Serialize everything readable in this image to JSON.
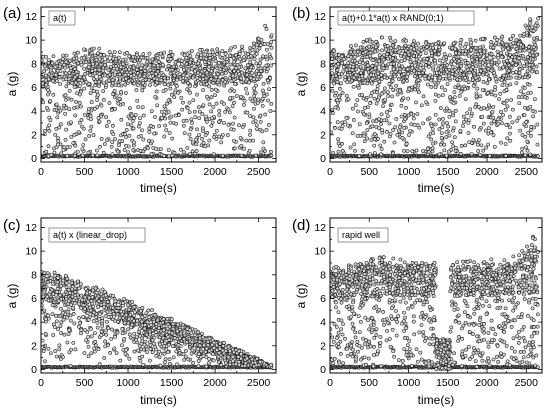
{
  "chart_data": [
    {
      "type": "scatter",
      "panel_label": "(a)",
      "legend": "a(t)",
      "xlabel": "time(s)",
      "ylabel": "a (g)",
      "xlim": [
        0,
        2700
      ],
      "ylim": [
        -0.3,
        12.8
      ],
      "xticks": [
        0,
        500,
        1000,
        1500,
        2000,
        2500
      ],
      "yticks": [
        0,
        2,
        4,
        6,
        8,
        10,
        12
      ],
      "marker": "open-circle",
      "pattern": "envelope",
      "series": [
        {
          "points": [
            [
              0,
              0.2
            ],
            [
              2650,
              0.2
            ]
          ],
          "kind": "baseline"
        },
        {
          "points": [
            [
              0,
              8.6
            ],
            [
              200,
              8.7
            ],
            [
              400,
              9.0
            ],
            [
              600,
              9.6
            ],
            [
              800,
              9.0
            ],
            [
              1200,
              9.0
            ],
            [
              1600,
              9.1
            ],
            [
              2000,
              9.3
            ],
            [
              2400,
              9.6
            ],
            [
              2600,
              11.5
            ]
          ],
          "kind": "upper-envelope"
        },
        {
          "points": [
            [
              0,
              6.0
            ],
            [
              500,
              6.1
            ],
            [
              1000,
              6.2
            ],
            [
              1500,
              6.2
            ],
            [
              2000,
              6.2
            ],
            [
              2500,
              6.4
            ],
            [
              2650,
              6.4
            ]
          ],
          "kind": "dense-band-lower"
        }
      ]
    },
    {
      "type": "scatter",
      "panel_label": "(b)",
      "legend": "a(t)+0.1*a(t) x RAND(0;1)",
      "xlabel": "time(s)",
      "ylabel": "a (g)",
      "xlim": [
        0,
        2700
      ],
      "ylim": [
        -0.3,
        12.8
      ],
      "xticks": [
        0,
        500,
        1000,
        1500,
        2000,
        2500
      ],
      "yticks": [
        0,
        2,
        4,
        6,
        8,
        10,
        12
      ],
      "marker": "open-circle",
      "pattern": "envelope",
      "series": [
        {
          "points": [
            [
              0,
              0.2
            ],
            [
              2650,
              0.2
            ]
          ],
          "kind": "baseline"
        },
        {
          "points": [
            [
              0,
              9.2
            ],
            [
              400,
              9.8
            ],
            [
              600,
              10.4
            ],
            [
              1200,
              9.9
            ],
            [
              1600,
              10.0
            ],
            [
              2000,
              10.2
            ],
            [
              2400,
              10.6
            ],
            [
              2600,
              12.2
            ]
          ],
          "kind": "upper-envelope"
        },
        {
          "points": [
            [
              0,
              6.3
            ],
            [
              500,
              6.4
            ],
            [
              1000,
              6.5
            ],
            [
              1500,
              6.6
            ],
            [
              2000,
              6.6
            ],
            [
              2500,
              6.8
            ],
            [
              2650,
              6.8
            ]
          ],
          "kind": "dense-band-lower"
        }
      ]
    },
    {
      "type": "scatter",
      "panel_label": "(c)",
      "legend": "a(t) x (linear_drop)",
      "xlabel": "time(s)",
      "ylabel": "a (g)",
      "xlim": [
        0,
        2700
      ],
      "ylim": [
        -0.3,
        12.8
      ],
      "xticks": [
        0,
        500,
        1000,
        1500,
        2000,
        2500
      ],
      "yticks": [
        0,
        2,
        4,
        6,
        8,
        10,
        12
      ],
      "marker": "open-circle",
      "pattern": "linear-drop",
      "series": [
        {
          "points": [
            [
              0,
              0.2
            ],
            [
              2650,
              0.2
            ]
          ],
          "kind": "baseline"
        },
        {
          "points": [
            [
              0,
              8.6
            ],
            [
              500,
              7.4
            ],
            [
              1000,
              5.9
            ],
            [
              1500,
              4.3
            ],
            [
              2000,
              2.6
            ],
            [
              2500,
              0.9
            ],
            [
              2650,
              0.2
            ]
          ],
          "kind": "upper-envelope"
        },
        {
          "points": [
            [
              0,
              6.0
            ],
            [
              500,
              5.0
            ],
            [
              1000,
              3.8
            ],
            [
              1500,
              2.6
            ],
            [
              2000,
              1.5
            ],
            [
              2500,
              0.4
            ],
            [
              2650,
              0.2
            ]
          ],
          "kind": "dense-band-lower"
        }
      ]
    },
    {
      "type": "scatter",
      "panel_label": "(d)",
      "legend": "rapid well",
      "xlabel": "time(s)",
      "ylabel": "a (g)",
      "xlim": [
        0,
        2700
      ],
      "ylim": [
        -0.3,
        12.8
      ],
      "xticks": [
        0,
        500,
        1000,
        1500,
        2000,
        2500
      ],
      "yticks": [
        0,
        2,
        4,
        6,
        8,
        10,
        12
      ],
      "marker": "open-circle",
      "pattern": "well",
      "well": {
        "x_range": [
          1350,
          1530
        ],
        "y_max": 2.6
      },
      "series": [
        {
          "points": [
            [
              0,
              0.2
            ],
            [
              2650,
              0.2
            ]
          ],
          "kind": "baseline"
        },
        {
          "points": [
            [
              0,
              8.6
            ],
            [
              400,
              9.0
            ],
            [
              600,
              9.6
            ],
            [
              1200,
              9.0
            ],
            [
              1600,
              9.1
            ],
            [
              2000,
              9.3
            ],
            [
              2400,
              9.6
            ],
            [
              2600,
              11.5
            ]
          ],
          "kind": "upper-envelope"
        },
        {
          "points": [
            [
              0,
              6.0
            ],
            [
              500,
              6.1
            ],
            [
              1000,
              6.2
            ],
            [
              1500,
              6.2
            ],
            [
              2000,
              6.2
            ],
            [
              2500,
              6.4
            ],
            [
              2650,
              6.4
            ]
          ],
          "kind": "dense-band-lower"
        }
      ]
    }
  ]
}
